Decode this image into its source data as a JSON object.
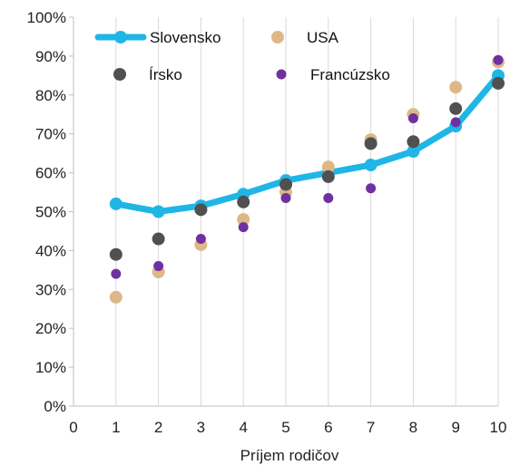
{
  "chart_data": {
    "type": "scatter",
    "xlabel": "Príjem rodičov",
    "ylabel": "",
    "xlim": [
      0,
      10
    ],
    "ylim": [
      0,
      100
    ],
    "x_ticks": [
      "0",
      "1",
      "2",
      "3",
      "4",
      "5",
      "6",
      "7",
      "8",
      "9",
      "10"
    ],
    "y_ticks": [
      "0%",
      "10%",
      "20%",
      "30%",
      "40%",
      "50%",
      "60%",
      "70%",
      "80%",
      "90%",
      "100%"
    ],
    "grid": {
      "vertical": true,
      "horizontal": false
    },
    "legend_position": "top",
    "x": [
      1,
      2,
      3,
      4,
      5,
      6,
      7,
      8,
      9,
      10
    ],
    "series": [
      {
        "name": "Slovensko",
        "mark": "line",
        "color": "#1fb6e6",
        "values": [
          52,
          50,
          51.5,
          54.5,
          58,
          60,
          62,
          65.5,
          72,
          85
        ]
      },
      {
        "name": "USA",
        "mark": "point",
        "color": "#ddb887",
        "values": [
          28,
          34.5,
          41.5,
          48,
          55,
          61.5,
          68.5,
          75,
          82,
          88.5
        ]
      },
      {
        "name": "Írsko",
        "mark": "point",
        "color": "#505050",
        "values": [
          39,
          43,
          50.5,
          52.5,
          57,
          59,
          67.5,
          68,
          76.5,
          83
        ]
      },
      {
        "name": "Francúzsko",
        "mark": "point",
        "color": "#7030a0",
        "values": [
          34,
          36,
          43,
          46,
          53.5,
          53.5,
          56,
          74,
          73,
          89
        ]
      }
    ]
  }
}
